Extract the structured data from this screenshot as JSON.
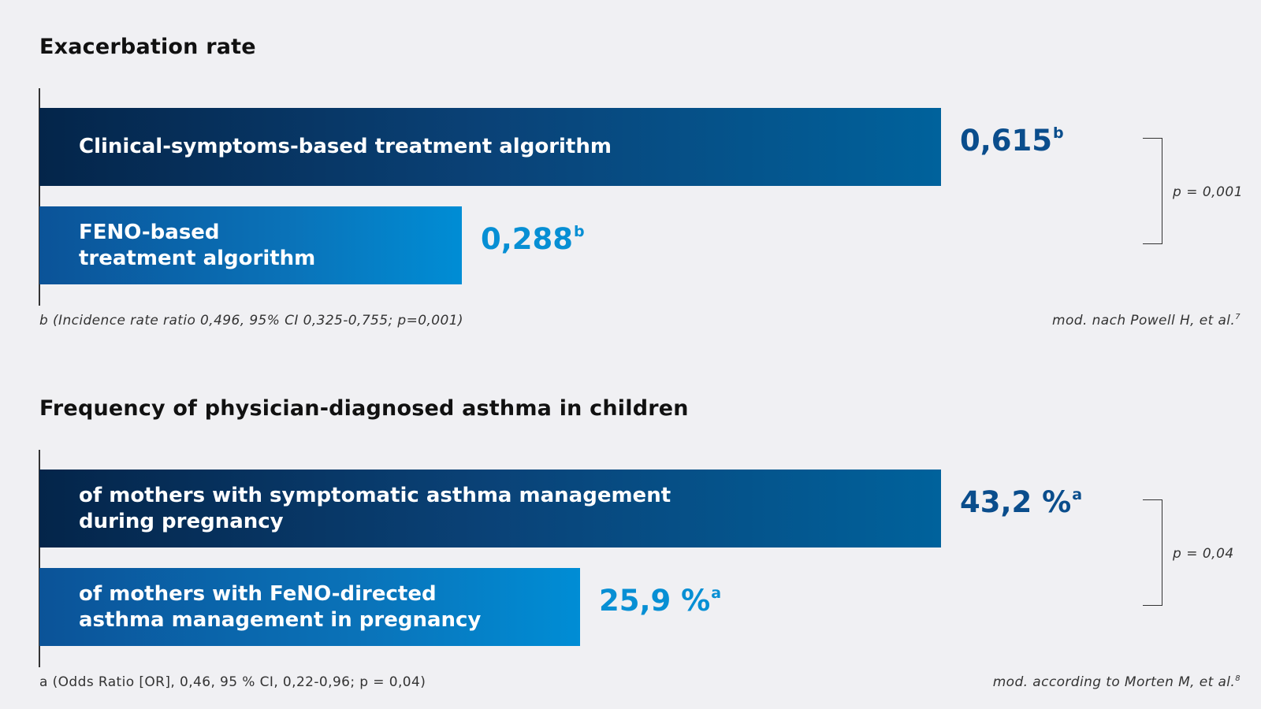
{
  "chart_data": [
    {
      "type": "bar",
      "orientation": "horizontal",
      "title": "Exacerbation rate",
      "categories": [
        "Clinical-symptoms-based treatment algorithm",
        "FENO-based\ntreatment algorithm"
      ],
      "values": [
        0.615,
        0.288
      ],
      "value_labels": [
        "0,615",
        "0,288"
      ],
      "value_superscript": "b",
      "colors": [
        "#0a4d8c",
        "#078fd4"
      ],
      "xlim": [
        0,
        0.645
      ],
      "significance": "p = 0,001",
      "footnote": "b (Incidence rate ratio 0,496, 95% CI 0,325-0,755; p=0,001)",
      "source": "mod. nach Powell H, et al.",
      "source_ref": "7"
    },
    {
      "type": "bar",
      "orientation": "horizontal",
      "title": "Frequency of physician-diagnosed asthma in children",
      "categories": [
        "of mothers with symptomatic asthma management\nduring pregnancy",
        "of mothers with FeNO-directed\nasthma management in pregnancy"
      ],
      "values": [
        43.2,
        25.9
      ],
      "value_labels": [
        "43,2 %",
        "25,9 %"
      ],
      "value_superscript": "a",
      "colors": [
        "#0a4d8c",
        "#078fd4"
      ],
      "xlim": [
        0,
        45.3
      ],
      "significance": "p = 0,04",
      "footnote": "a (Odds Ratio [OR], 0,46, 95 % CI, 0,22-0,96; p = 0,04)",
      "source": "mod. according to Morten M, et al.",
      "source_ref": "8"
    }
  ]
}
